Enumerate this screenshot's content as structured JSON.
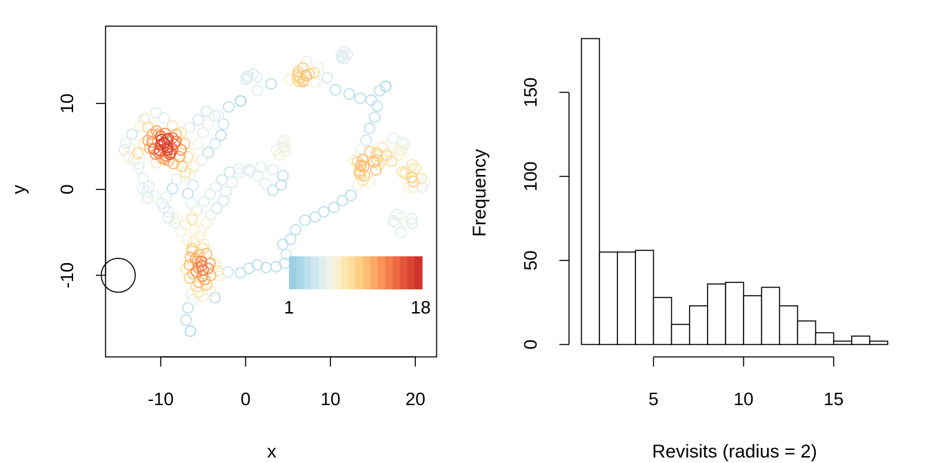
{
  "chart_data": [
    {
      "type": "scatter",
      "title": "",
      "xlabel": "x",
      "ylabel": "y",
      "xlim": [
        -16.5,
        22.5
      ],
      "ylim": [
        -19.5,
        19
      ],
      "x_ticks": [
        -10,
        0,
        10,
        20
      ],
      "y_ticks": [
        -10,
        0,
        10
      ],
      "x_tick_labels": [
        "-10",
        "0",
        "10",
        "20"
      ],
      "y_tick_labels": [
        "-10",
        "0",
        "10"
      ],
      "grid": false,
      "marker": "open-circle",
      "colors_low_to_high": [
        "#abd9e9",
        "#fee090",
        "#fdae61",
        "#f46d43",
        "#d73027"
      ],
      "colorbar": {
        "min_label": "1",
        "max_label": "18",
        "min": 1,
        "max": 18,
        "colors": [
          "#9ccfe2",
          "#aad8e8",
          "#bde0ec",
          "#cfe7ef",
          "#e0eef0",
          "#eef2e8",
          "#f8f0cf",
          "#fbe7b0",
          "#fcdc98",
          "#fccf85",
          "#fcbd74",
          "#fba964",
          "#f99357",
          "#f57e4c",
          "#ef6a43",
          "#e5553a",
          "#da4333",
          "#d0332d"
        ]
      },
      "radius_marker": {
        "x": -15,
        "y": -10,
        "r": 2
      },
      "track": [
        [
          -6.5,
          -16.5
        ],
        [
          -7,
          -15.2
        ],
        [
          -6.8,
          -13.8
        ],
        [
          -6.2,
          -12.8
        ],
        [
          -5.6,
          -12
        ],
        [
          -5.5,
          -10.8
        ],
        [
          -5.8,
          -9.6
        ],
        [
          -5.2,
          -8.4
        ],
        [
          -4.6,
          -7.5
        ],
        [
          -4.9,
          -6.4
        ],
        [
          -5.4,
          -5.5
        ],
        [
          -6,
          -4.7
        ],
        [
          -6.3,
          -3.5
        ],
        [
          -5.8,
          -2.5
        ],
        [
          -6.4,
          -1.6
        ],
        [
          -6.8,
          -0.5
        ],
        [
          -6.2,
          0.5
        ],
        [
          -6.6,
          1.8
        ],
        [
          -6.1,
          2.8
        ],
        [
          -6.8,
          3.8
        ],
        [
          -7.6,
          4.6
        ],
        [
          -8.4,
          5.3
        ],
        [
          -9.2,
          4.6
        ],
        [
          -10,
          5.2
        ],
        [
          -10.8,
          4.7
        ],
        [
          -11.5,
          5.7
        ],
        [
          -10.3,
          6.4
        ],
        [
          -9.3,
          5.8
        ],
        [
          -8.8,
          4.3
        ],
        [
          -9.5,
          3.5
        ],
        [
          -10.2,
          4.2
        ],
        [
          -9.6,
          5.4
        ],
        [
          -8.2,
          6.4
        ],
        [
          -7.2,
          5.3
        ],
        [
          -6.6,
          4.2
        ],
        [
          -5.6,
          5.3
        ],
        [
          -5,
          6.6
        ],
        [
          -4.4,
          7.6
        ],
        [
          -3.2,
          8.6
        ],
        [
          -2,
          9.6
        ],
        [
          -0.6,
          10.3
        ],
        [
          1.4,
          11.5
        ],
        [
          3,
          12.3
        ],
        [
          5.2,
          12.8
        ],
        [
          6.2,
          13.7
        ],
        [
          7.2,
          14.9
        ],
        [
          8.6,
          14.2
        ],
        [
          9.6,
          13
        ],
        [
          10.6,
          11.6
        ],
        [
          12.2,
          11.1
        ],
        [
          13.5,
          10.6
        ],
        [
          14.8,
          10.4
        ],
        [
          15.8,
          11.5
        ],
        [
          16.5,
          12
        ],
        [
          15.5,
          9.7
        ],
        [
          15.2,
          8.4
        ],
        [
          14.6,
          7.1
        ],
        [
          14.2,
          5.7
        ],
        [
          13.6,
          4.7
        ],
        [
          12.8,
          3.4
        ],
        [
          13.4,
          2
        ],
        [
          13.2,
          0.5
        ],
        [
          12.4,
          -0.7
        ],
        [
          11.4,
          -1.3
        ],
        [
          10.4,
          -2.1
        ],
        [
          9.2,
          -2.6
        ],
        [
          8.2,
          -3.2
        ],
        [
          7,
          -3.6
        ],
        [
          5.9,
          -4.7
        ],
        [
          5.3,
          -5.8
        ],
        [
          4.4,
          -6.4
        ],
        [
          4.8,
          -7.6
        ],
        [
          4.6,
          -8.6
        ],
        [
          3.6,
          -9
        ],
        [
          2.4,
          -9.1
        ],
        [
          1.4,
          -8.8
        ],
        [
          0.4,
          -9.2
        ],
        [
          -0.6,
          -9.7
        ],
        [
          -2.1,
          -9.6
        ],
        [
          -3.1,
          -10.1
        ],
        [
          -4.1,
          -10
        ],
        [
          -5,
          -9.4
        ],
        [
          -5.7,
          -8.4
        ],
        [
          -6.3,
          -7.2
        ],
        [
          -6.1,
          -6.1
        ],
        [
          -5.3,
          -4.8
        ],
        [
          -4.6,
          -3.9
        ],
        [
          -4.1,
          -3
        ],
        [
          -3.4,
          -2.2
        ],
        [
          -2.6,
          -1.3
        ],
        [
          -2.3,
          -0.3
        ],
        [
          -1.6,
          0.8
        ],
        [
          -0.8,
          1.9
        ],
        [
          0.5,
          2.1
        ],
        [
          1.8,
          2.6
        ],
        [
          3.2,
          2.3
        ],
        [
          4.4,
          1.6
        ],
        [
          4.2,
          0.5
        ],
        [
          3.2,
          -0.1
        ],
        [
          2.3,
          0.7
        ],
        [
          1.4,
          1.6
        ],
        [
          0.4,
          2.3
        ],
        [
          -0.8,
          2.4
        ],
        [
          -1.9,
          2
        ],
        [
          -2.8,
          1.1
        ],
        [
          -3.5,
          0.3
        ],
        [
          -4.2,
          -0.6
        ],
        [
          -4.9,
          -1.4
        ],
        [
          -5.6,
          -2.4
        ],
        [
          -6.3,
          -3.2
        ],
        [
          -7.1,
          -4.1
        ],
        [
          -8.1,
          -3.4
        ],
        [
          -9.1,
          -2.6
        ],
        [
          -9.9,
          -1.6
        ],
        [
          -10.7,
          -0.8
        ],
        [
          -11.4,
          0.3
        ],
        [
          -12.1,
          1.3
        ],
        [
          -12.6,
          2.5
        ],
        [
          -13.1,
          3.6
        ],
        [
          -13.6,
          4.7
        ],
        [
          -14.1,
          5.4
        ],
        [
          -13.4,
          6.4
        ],
        [
          -12.4,
          7.3
        ],
        [
          -11.6,
          8.3
        ],
        [
          -10.6,
          8.9
        ],
        [
          -9.6,
          8.3
        ],
        [
          -8.6,
          7.4
        ],
        [
          -7.6,
          6.6
        ],
        [
          -6.6,
          7.2
        ],
        [
          -5.6,
          8.1
        ],
        [
          -4.6,
          9.1
        ],
        [
          -3.6,
          8.6
        ],
        [
          -2.6,
          7.6
        ],
        [
          -2.9,
          6.3
        ],
        [
          -3.6,
          5.3
        ],
        [
          -4.4,
          4.3
        ],
        [
          -5.2,
          3.4
        ],
        [
          -6.1,
          2.6
        ],
        [
          -7.1,
          2
        ],
        [
          -8.1,
          1.2
        ],
        [
          -8.6,
          0.1
        ],
        [
          -9.3,
          -0.9
        ],
        [
          -9.6,
          -2.1
        ],
        [
          -9.1,
          -3.3
        ],
        [
          -8.3,
          -3.9
        ],
        [
          -7.6,
          -4.9
        ],
        [
          -6.9,
          -5.9
        ],
        [
          -6.3,
          -6.9
        ],
        [
          -5.9,
          -8.1
        ],
        [
          -5.6,
          -9.1
        ],
        [
          -5.1,
          -10.1
        ],
        [
          -4.6,
          -11.1
        ],
        [
          -4.1,
          -11.9
        ],
        [
          -3.6,
          -12.6
        ]
      ],
      "extra_points": [
        [
          -14.3,
          4.6
        ],
        [
          -13.8,
          3.8
        ],
        [
          -13.2,
          3.4
        ],
        [
          -12.6,
          3
        ],
        [
          -12,
          8.2
        ],
        [
          -11.9,
          8.1
        ],
        [
          -11.5,
          7.2
        ],
        [
          -11,
          6.4
        ],
        [
          -10.5,
          6.8
        ],
        [
          -10,
          6.2
        ],
        [
          -9.5,
          6.5
        ],
        [
          -9.2,
          4.9
        ],
        [
          -8.6,
          4.7
        ],
        [
          -8.2,
          5.6
        ],
        [
          -7.8,
          3.8
        ],
        [
          -7.5,
          2.7
        ],
        [
          -7.2,
          1.6
        ],
        [
          -8.5,
          3
        ],
        [
          -9.8,
          3.6
        ],
        [
          -10.6,
          4.1
        ],
        [
          -11.3,
          4.8
        ],
        [
          -12,
          5.3
        ],
        [
          -12.7,
          4.2
        ],
        [
          -6.6,
          -8.8
        ],
        [
          -6.2,
          -9.8
        ],
        [
          -5.2,
          -8.9
        ],
        [
          -4.4,
          -9.2
        ],
        [
          -4.8,
          -10.5
        ],
        [
          -5.8,
          -11.3
        ],
        [
          -6.6,
          -10.3
        ],
        [
          -7,
          -9.2
        ],
        [
          -5.5,
          -7.6
        ],
        [
          -5,
          -6.9
        ],
        [
          -6.5,
          -7.9
        ],
        [
          -4.2,
          -8.6
        ],
        [
          -6.4,
          -12.2
        ],
        [
          -5,
          -12.4
        ],
        [
          -12.1,
          0.1
        ],
        [
          -11.6,
          -0.3
        ],
        [
          -11.5,
          -1
        ],
        [
          -3.3,
          -9.5
        ],
        [
          -3.6,
          -8.7
        ],
        [
          -10.5,
          3.1
        ],
        [
          -9.1,
          3.3
        ],
        [
          -11,
          5.5
        ],
        [
          -10.1,
          4.5
        ],
        [
          -9.1,
          5.9
        ],
        [
          -8.6,
          6
        ],
        [
          -9.9,
          5.8
        ],
        [
          -8.9,
          4.1
        ],
        [
          -9.4,
          3.9
        ]
      ],
      "clusters": [
        {
          "cx": 7,
          "cy": 13,
          "n": 12,
          "spread": 1.3
        },
        {
          "cx": 14.5,
          "cy": 2.5,
          "n": 18,
          "spread": 2.0
        },
        {
          "cx": 19.8,
          "cy": 1.5,
          "n": 14,
          "spread": 1.6
        },
        {
          "cx": 17.5,
          "cy": 4.5,
          "n": 10,
          "spread": 1.5
        },
        {
          "cx": 4.5,
          "cy": 4.8,
          "n": 8,
          "spread": 1.0
        },
        {
          "cx": 11.5,
          "cy": 15.5,
          "n": 6,
          "spread": 0.9
        },
        {
          "cx": 18.5,
          "cy": -4,
          "n": 8,
          "spread": 1.3
        },
        {
          "cx": 0.7,
          "cy": 13,
          "n": 5,
          "spread": 0.8
        }
      ]
    },
    {
      "type": "bar",
      "subtype": "histogram",
      "title": "",
      "xlabel": "Revisits (radius = 2)",
      "ylabel": "Frequency",
      "bin_edges": [
        1,
        2,
        3,
        4,
        5,
        6,
        7,
        8,
        9,
        10,
        11,
        12,
        13,
        14,
        15,
        16,
        17,
        18
      ],
      "values": [
        182,
        55,
        55,
        56,
        28,
        12,
        23,
        36,
        37,
        29,
        34,
        23,
        14,
        7,
        2,
        5,
        2
      ],
      "xlim": [
        1,
        18
      ],
      "ylim": [
        0,
        182
      ],
      "x_ticks": [
        5,
        10,
        15
      ],
      "x_tick_labels": [
        "5",
        "10",
        "15"
      ],
      "x_axis_from": 5,
      "x_axis_to": 15,
      "y_ticks": [
        0,
        50,
        100,
        150
      ],
      "y_tick_labels": [
        "0",
        "50",
        "100",
        "150"
      ],
      "grid": false,
      "fill": "#ffffff",
      "stroke": "#000000"
    }
  ]
}
